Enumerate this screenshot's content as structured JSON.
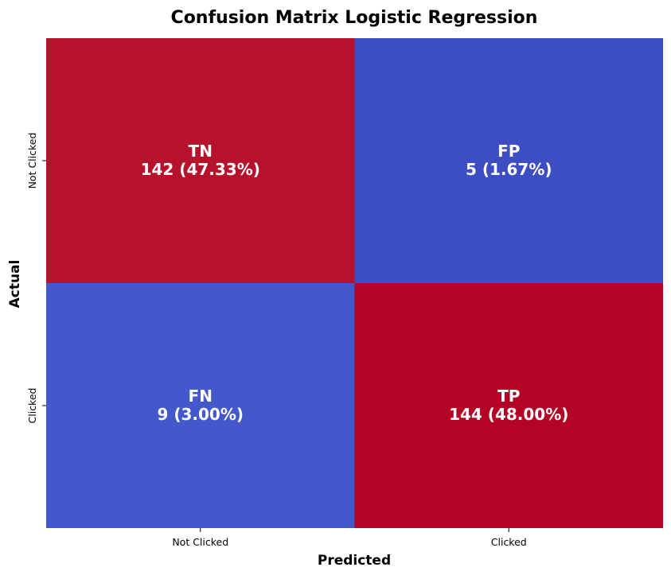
{
  "chart_data": {
    "type": "heatmap",
    "title": "Confusion Matrix Logistic Regression",
    "xlabel": "Predicted",
    "ylabel": "Actual",
    "x_categories": [
      "Not Clicked",
      "Clicked"
    ],
    "y_categories": [
      "Not Clicked",
      "Clicked"
    ],
    "cells": [
      [
        {
          "label": "TN",
          "count": 142,
          "percent_text": "142 (47.33%)",
          "color": "#b7122b"
        },
        {
          "label": "FP",
          "count": 5,
          "percent_text": "5 (1.67%)",
          "color": "#3c4ec2"
        }
      ],
      [
        {
          "label": "FN",
          "count": 9,
          "percent_text": "9 (3.00%)",
          "color": "#4358cb"
        },
        {
          "label": "TP",
          "count": 144,
          "percent_text": "144 (48.00%)",
          "color": "#b40426"
        }
      ]
    ],
    "colormap": "coolwarm",
    "colorbar": false,
    "grid": false
  }
}
